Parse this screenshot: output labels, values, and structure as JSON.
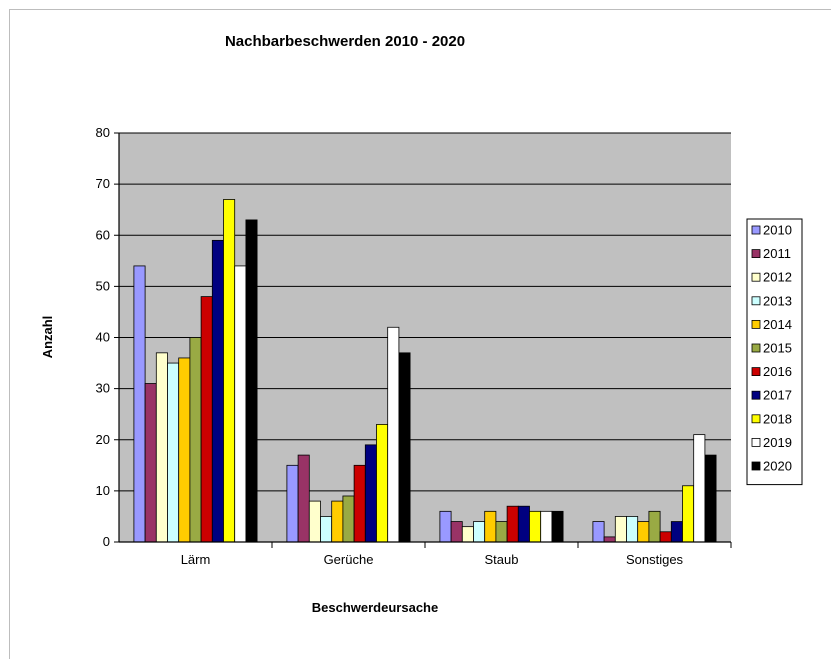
{
  "chart_data": {
    "type": "bar",
    "title": "Nachbarbeschwerden 2010 - 2020",
    "xlabel": "Beschwerdeursache",
    "ylabel": "Anzahl",
    "ylim": [
      0,
      80
    ],
    "yticks": [
      0,
      10,
      20,
      30,
      40,
      50,
      60,
      70,
      80
    ],
    "categories": [
      "Lärm",
      "Gerüche",
      "Staub",
      "Sonstiges"
    ],
    "grid": true,
    "legend_position": "right",
    "plot_background": "#c0c0c0",
    "series": [
      {
        "name": "2010",
        "color": "#9999ff",
        "values": [
          54,
          15,
          6,
          4
        ]
      },
      {
        "name": "2011",
        "color": "#993366",
        "values": [
          31,
          17,
          4,
          1
        ]
      },
      {
        "name": "2012",
        "color": "#ffffcc",
        "values": [
          37,
          8,
          3,
          5
        ]
      },
      {
        "name": "2013",
        "color": "#ccffff",
        "values": [
          35,
          5,
          4,
          5
        ]
      },
      {
        "name": "2014",
        "color": "#ffcc00",
        "values": [
          36,
          8,
          6,
          4
        ]
      },
      {
        "name": "2015",
        "color": "#99aa44",
        "values": [
          40,
          9,
          4,
          6
        ]
      },
      {
        "name": "2016",
        "color": "#cc0000",
        "values": [
          48,
          15,
          7,
          2
        ]
      },
      {
        "name": "2017",
        "color": "#000080",
        "values": [
          59,
          19,
          7,
          4
        ]
      },
      {
        "name": "2018",
        "color": "#ffff00",
        "values": [
          67,
          23,
          6,
          11
        ]
      },
      {
        "name": "2019",
        "color": "#ffffff",
        "values": [
          54,
          42,
          6,
          21
        ]
      },
      {
        "name": "2020",
        "color": "#000000",
        "values": [
          63,
          37,
          6,
          17
        ]
      }
    ]
  }
}
